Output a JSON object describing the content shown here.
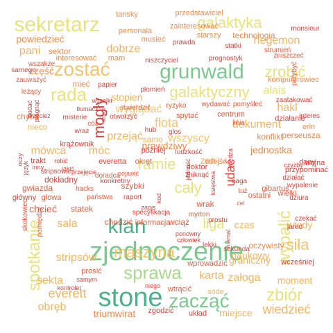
{
  "colors": {
    "red": "#e0413a",
    "orange_red": "#ea5a3c",
    "orange": "#f08a4b",
    "amber": "#f5b35c",
    "light_orange": "#f7c46a",
    "yellow": "#e9e27a",
    "yellow_green": "#cfe07a",
    "light_green": "#a9d98b",
    "green": "#7cc98e",
    "teal": "#4bb38c"
  },
  "words": [
    {
      "text": "zjednoczenie",
      "color": "green"
    },
    {
      "text": "stone",
      "color": "teal"
    },
    {
      "text": "grunwald",
      "color": "green"
    },
    {
      "text": "klan",
      "color": "teal"
    },
    {
      "text": "sekretarz",
      "color": "yellow"
    },
    {
      "text": "zostać",
      "color": "light_orange"
    },
    {
      "text": "rada",
      "color": "yellow"
    },
    {
      "text": "zacząć",
      "color": "green"
    },
    {
      "text": "sprawa",
      "color": "light_green"
    },
    {
      "text": "galaktyczny",
      "color": "yellow"
    },
    {
      "text": "zrobić",
      "color": "yellow"
    },
    {
      "text": "spotkanie",
      "color": "yellow"
    },
    {
      "text": "wypalić",
      "color": "yellow"
    },
    {
      "text": "maszyna",
      "color": "light_orange"
    },
    {
      "text": "galaktyka",
      "color": "yellow"
    },
    {
      "text": "zbiór",
      "color": "yellow"
    },
    {
      "text": "ramie",
      "color": "yellow"
    },
    {
      "text": "cały",
      "color": "yellow"
    },
    {
      "text": "wyglądać",
      "color": "light_orange"
    },
    {
      "text": "siła",
      "color": "light_orange"
    },
    {
      "text": "liga",
      "color": "yellow"
    },
    {
      "text": "flota",
      "color": "light_orange"
    },
    {
      "text": "wiedzieć",
      "color": "amber"
    },
    {
      "text": "everett",
      "color": "amber"
    },
    {
      "text": "dobrze",
      "color": "amber"
    },
    {
      "text": "hegemon",
      "color": "amber"
    },
    {
      "text": "hakl",
      "color": "amber"
    },
    {
      "text": "dokument",
      "color": "amber"
    },
    {
      "text": "wszyscy",
      "color": "light_orange"
    },
    {
      "text": "alais",
      "color": "yellow"
    },
    {
      "text": "stripsów",
      "color": "amber"
    },
    {
      "text": "sala",
      "color": "amber"
    },
    {
      "text": "sekta",
      "color": "amber"
    },
    {
      "text": "obręb",
      "color": "amber"
    },
    {
      "text": "triumwirat",
      "color": "orange"
    },
    {
      "text": "karta",
      "color": "amber"
    },
    {
      "text": "załoga",
      "color": "amber"
    },
    {
      "text": "moment",
      "color": "amber"
    },
    {
      "text": "czas",
      "color": "amber"
    },
    {
      "text": "wtedy",
      "color": "amber"
    },
    {
      "text": "miejsce",
      "color": "amber"
    },
    {
      "text": "naukowy",
      "color": "amber"
    },
    {
      "text": "graniczny",
      "color": "amber"
    },
    {
      "text": "oczywisty",
      "color": "orange"
    },
    {
      "text": "stopień",
      "color": "amber"
    },
    {
      "text": "przejąć",
      "color": "amber"
    },
    {
      "text": "mówca",
      "color": "amber"
    },
    {
      "text": "móc",
      "color": "amber"
    },
    {
      "text": "pani",
      "color": "amber"
    },
    {
      "text": "powiedzieć",
      "color": "orange"
    },
    {
      "text": "sektor",
      "color": "orange"
    },
    {
      "text": "część",
      "color": "orange"
    },
    {
      "text": "mieć",
      "color": "orange"
    },
    {
      "text": "nieco",
      "color": "amber"
    },
    {
      "text": "chyba",
      "color": "orange"
    },
    {
      "text": "jednostka",
      "color": "orange"
    },
    {
      "text": "konflikt",
      "color": "orange"
    },
    {
      "text": "perseusza",
      "color": "orange"
    },
    {
      "text": "erin",
      "color": "orange"
    },
    {
      "text": "technologia",
      "color": "orange"
    },
    {
      "text": "personala",
      "color": "orange"
    },
    {
      "text": "musieć",
      "color": "orange"
    },
    {
      "text": "mam",
      "color": "orange"
    },
    {
      "text": "tansky",
      "color": "orange"
    },
    {
      "text": "przedstawiciel",
      "color": "orange"
    },
    {
      "text": "zainteresować",
      "color": "orange"
    },
    {
      "text": "starszy",
      "color": "orange"
    },
    {
      "text": "prawda",
      "color": "red"
    },
    {
      "text": "statki",
      "color": "red"
    },
    {
      "text": "monsieur",
      "color": "red"
    },
    {
      "text": "niszczyciel",
      "color": "red"
    },
    {
      "text": "interesować",
      "color": "orange"
    },
    {
      "text": "strumień",
      "color": "orange_red"
    },
    {
      "text": "zniszczeć",
      "color": "orange_red"
    },
    {
      "text": "przybyć",
      "color": "orange_red"
    },
    {
      "text": "prognostyk",
      "color": "red"
    },
    {
      "text": "komputerowiec",
      "color": "orange"
    },
    {
      "text": "wszakże",
      "color": "orange_red"
    },
    {
      "text": "samego",
      "color": "red"
    },
    {
      "text": "zauważyć",
      "color": "orange_red"
    },
    {
      "text": "papier",
      "color": "red"
    },
    {
      "text": "płomień",
      "color": "red"
    },
    {
      "text": "leżący",
      "color": "orange_red"
    },
    {
      "text": "zaatakować",
      "color": "red"
    },
    {
      "text": "interes",
      "color": "red"
    },
    {
      "text": "działanie",
      "color": "red"
    },
    {
      "text": "centrum",
      "color": "orange_red"
    },
    {
      "text": "linia",
      "color": "orange_red"
    },
    {
      "text": "wydawać",
      "color": "orange_red"
    },
    {
      "text": "pomyśleć",
      "color": "orange_red"
    },
    {
      "text": "ryzyko",
      "color": "orange_red"
    },
    {
      "text": "stwierdzić",
      "color": "orange_red"
    },
    {
      "text": "spytać",
      "color": "orange_red"
    },
    {
      "text": "samo",
      "color": "amber"
    },
    {
      "text": "prawdziwy",
      "color": "orange"
    },
    {
      "text": "zen",
      "color": "amber"
    },
    {
      "text": "odejść",
      "color": "orange"
    },
    {
      "text": "dany",
      "color": "red"
    },
    {
      "text": "wojna",
      "color": "red"
    },
    {
      "text": "przypominać",
      "color": "red"
    },
    {
      "text": "działać",
      "color": "red"
    },
    {
      "text": "wypalenie",
      "color": "red"
    },
    {
      "text": "gibartus",
      "color": "orange_red"
    },
    {
      "text": "wielki",
      "color": "orange_red"
    },
    {
      "text": "ostatni",
      "color": "orange_red"
    },
    {
      "text": "dziura",
      "color": "red"
    },
    {
      "text": "czekać",
      "color": "red"
    },
    {
      "text": "jared",
      "color": "red"
    },
    {
      "text": "wcześniej",
      "color": "red"
    },
    {
      "text": "sekunda",
      "color": "red"
    },
    {
      "text": "lekki",
      "color": "red"
    },
    {
      "text": "wprowadzić",
      "color": "orange_red"
    },
    {
      "text": "sode",
      "color": "amber"
    },
    {
      "text": "wtrącić",
      "color": "orange_red"
    },
    {
      "text": "zgodzić",
      "color": "red"
    },
    {
      "text": "układ",
      "color": "red"
    },
    {
      "text": "niego",
      "color": "red"
    },
    {
      "text": "prosić",
      "color": "orange_red"
    },
    {
      "text": "samym",
      "color": "red"
    },
    {
      "text": "kontroler",
      "color": "red"
    },
    {
      "text": "skokowiec",
      "color": "orange_red"
    },
    {
      "text": "pomiędzy",
      "color": "orange_red"
    },
    {
      "text": "chcieć",
      "color": "orange_red"
    },
    {
      "text": "główny",
      "color": "red"
    },
    {
      "text": "głowa",
      "color": "orange_red"
    },
    {
      "text": "statek",
      "color": "orange_red"
    },
    {
      "text": "chodzić",
      "color": "orange_red"
    },
    {
      "text": "informacja",
      "color": "orange_red"
    },
    {
      "text": "wciąż",
      "color": "orange_red"
    },
    {
      "text": "myrton",
      "color": "orange_red"
    },
    {
      "text": "wrak",
      "color": "orange_red"
    },
    {
      "text": "szybki",
      "color": "orange_red"
    },
    {
      "text": "państwa",
      "color": "orange_red"
    },
    {
      "text": "raport",
      "color": "red"
    },
    {
      "text": "everetta",
      "color": "red"
    },
    {
      "text": "okręt",
      "color": "orange_red"
    },
    {
      "text": "doradca",
      "color": "orange_red"
    },
    {
      "text": "konkretny",
      "color": "red"
    },
    {
      "text": "dokładny",
      "color": "red"
    },
    {
      "text": "gwiazda",
      "color": "orange_red"
    },
    {
      "text": "hacks",
      "color": "orange_red"
    },
    {
      "text": "stripsowie",
      "color": "red"
    },
    {
      "text": "przejęcie",
      "color": "red"
    },
    {
      "text": "robić",
      "color": "red"
    },
    {
      "text": "trakt",
      "color": "red"
    },
    {
      "text": "inny",
      "color": "red"
    },
    {
      "text": "jakiś",
      "color": "orange_red"
    },
    {
      "text": "krążownik",
      "color": "red"
    },
    {
      "text": "wraz",
      "color": "red"
    },
    {
      "text": "cóż",
      "color": "orange_red"
    },
    {
      "text": "misterie",
      "color": "red"
    },
    {
      "text": "tłumacz",
      "color": "red"
    },
    {
      "text": "otworzyć",
      "color": "red"
    },
    {
      "text": "hub",
      "color": "red"
    },
    {
      "text": "glos",
      "color": "red"
    },
    {
      "text": "później",
      "color": "red"
    },
    {
      "text": "ludzkość",
      "color": "red"
    },
    {
      "text": "pojawić",
      "color": "orange_red"
    },
    {
      "text": "specyfikacja",
      "color": "red"
    },
    {
      "text": "zapis",
      "color": "red"
    },
    {
      "text": "kod",
      "color": "red"
    },
    {
      "text": "zniknąć",
      "color": "red"
    },
    {
      "text": "doktor",
      "color": "red"
    },
    {
      "text": "naga",
      "color": "red"
    },
    {
      "text": "tuż",
      "color": "orange_red"
    },
    {
      "text": "cel",
      "color": "orange_red"
    },
    {
      "text": "prostu",
      "color": "red"
    },
    {
      "text": "ponowny",
      "color": "red"
    },
    {
      "text": "człowiek",
      "color": "red"
    },
    {
      "text": "niemal",
      "color": "red"
    },
    {
      "text": "księstwa",
      "color": "red"
    },
    {
      "text": "czyżby",
      "color": "red"
    },
    {
      "text": "przecież",
      "color": "red"
    },
    {
      "text": "pragnąć",
      "color": "red"
    },
    {
      "text": "oczy",
      "color": "red"
    },
    {
      "text": "język",
      "color": "red"
    },
    {
      "text": "dodać",
      "color": "red"
    },
    {
      "text": "wszelki",
      "color": "red"
    },
    {
      "text": "drugi",
      "color": "red"
    },
    {
      "text": "jedność",
      "color": "red"
    },
    {
      "text": "wiedza",
      "color": "red"
    },
    {
      "text": "mogły",
      "color": "red"
    },
    {
      "text": "udać",
      "color": "red"
    },
    {
      "text": "opiekunka",
      "color": "red"
    },
    {
      "text": "biekit",
      "color": "yellow"
    },
    {
      "text": "wstążka",
      "color": "light_orange"
    }
  ]
}
